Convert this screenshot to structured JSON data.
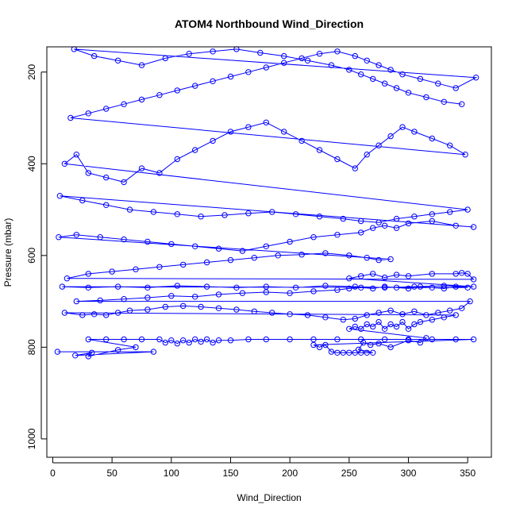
{
  "chart_data": {
    "type": "line",
    "title": "ATOM4 Northbound Wind_Direction",
    "xlabel": "Wind_Direction",
    "ylabel": "Pressure (mbar)",
    "xlim": [
      -5,
      370
    ],
    "ylim": [
      1040,
      145
    ],
    "y_reversed": true,
    "x_ticks": [
      0,
      50,
      100,
      150,
      200,
      250,
      300,
      350
    ],
    "y_ticks": [
      200,
      400,
      600,
      800,
      1000
    ],
    "x_tick_labels": [
      "0",
      "50",
      "100",
      "150",
      "200",
      "250",
      "300",
      "350"
    ],
    "y_tick_labels": [
      "200",
      "400",
      "600",
      "800",
      "1000"
    ],
    "grid": false,
    "legend": "none",
    "colors": {
      "series": "#0000ff",
      "axis": "#000000",
      "background": "#ffffff"
    },
    "series": [
      {
        "marker": "open-circle",
        "points": [
          [
            4,
            810
          ],
          [
            85,
            810
          ],
          [
            19,
            818
          ],
          [
            33,
            812
          ],
          [
            30,
            820
          ],
          [
            55,
            806
          ],
          [
            70,
            800
          ],
          [
            30,
            783
          ],
          [
            45,
            783
          ],
          [
            60,
            783
          ],
          [
            75,
            783
          ],
          [
            90,
            783
          ],
          [
            95,
            790
          ],
          [
            100,
            785
          ],
          [
            105,
            792
          ],
          [
            110,
            785
          ],
          [
            115,
            790
          ],
          [
            120,
            783
          ],
          [
            125,
            788
          ],
          [
            130,
            783
          ],
          [
            135,
            790
          ],
          [
            140,
            785
          ],
          [
            150,
            785
          ],
          [
            165,
            783
          ],
          [
            180,
            783
          ],
          [
            200,
            783
          ],
          [
            220,
            783
          ],
          [
            240,
            783
          ],
          [
            260,
            783
          ],
          [
            280,
            783
          ],
          [
            300,
            783
          ],
          [
            320,
            783
          ],
          [
            340,
            783
          ],
          [
            355,
            783
          ],
          [
            220,
            795
          ],
          [
            225,
            800
          ],
          [
            230,
            795
          ],
          [
            235,
            810
          ],
          [
            240,
            812
          ],
          [
            245,
            812
          ],
          [
            250,
            812
          ],
          [
            255,
            812
          ],
          [
            260,
            812
          ],
          [
            265,
            812
          ],
          [
            270,
            812
          ],
          [
            258,
            805
          ],
          [
            262,
            790
          ],
          [
            268,
            795
          ],
          [
            275,
            792
          ],
          [
            285,
            800
          ],
          [
            300,
            785
          ],
          [
            310,
            790
          ],
          [
            315,
            780
          ],
          [
            250,
            760
          ],
          [
            255,
            755
          ],
          [
            260,
            760
          ],
          [
            265,
            750
          ],
          [
            270,
            755
          ],
          [
            275,
            745
          ],
          [
            280,
            760
          ],
          [
            285,
            750
          ],
          [
            290,
            755
          ],
          [
            295,
            745
          ],
          [
            300,
            760
          ],
          [
            305,
            750
          ],
          [
            310,
            745
          ],
          [
            320,
            740
          ],
          [
            330,
            735
          ],
          [
            340,
            730
          ],
          [
            10,
            725
          ],
          [
            25,
            730
          ],
          [
            35,
            728
          ],
          [
            45,
            730
          ],
          [
            55,
            725
          ],
          [
            65,
            720
          ],
          [
            80,
            718
          ],
          [
            95,
            712
          ],
          [
            110,
            710
          ],
          [
            125,
            712
          ],
          [
            140,
            715
          ],
          [
            155,
            718
          ],
          [
            170,
            722
          ],
          [
            185,
            725
          ],
          [
            200,
            728
          ],
          [
            215,
            730
          ],
          [
            230,
            735
          ],
          [
            245,
            740
          ],
          [
            255,
            738
          ],
          [
            265,
            730
          ],
          [
            275,
            725
          ],
          [
            285,
            720
          ],
          [
            295,
            728
          ],
          [
            305,
            722
          ],
          [
            315,
            730
          ],
          [
            325,
            725
          ],
          [
            335,
            720
          ],
          [
            345,
            715
          ],
          [
            352,
            700
          ],
          [
            20,
            700
          ],
          [
            40,
            698
          ],
          [
            60,
            695
          ],
          [
            80,
            692
          ],
          [
            100,
            688
          ],
          [
            120,
            690
          ],
          [
            140,
            685
          ],
          [
            160,
            682
          ],
          [
            180,
            680
          ],
          [
            200,
            682
          ],
          [
            220,
            678
          ],
          [
            240,
            675
          ],
          [
            250,
            672
          ],
          [
            260,
            670
          ],
          [
            270,
            672
          ],
          [
            280,
            668
          ],
          [
            290,
            670
          ],
          [
            300,
            672
          ],
          [
            310,
            668
          ],
          [
            320,
            670
          ],
          [
            330,
            672
          ],
          [
            340,
            668
          ],
          [
            350,
            670
          ],
          [
            8,
            668
          ],
          [
            30,
            670
          ],
          [
            55,
            668
          ],
          [
            80,
            670
          ],
          [
            105,
            666
          ],
          [
            130,
            668
          ],
          [
            155,
            670
          ],
          [
            180,
            668
          ],
          [
            205,
            670
          ],
          [
            230,
            666
          ],
          [
            255,
            668
          ],
          [
            280,
            670
          ],
          [
            305,
            668
          ],
          [
            330,
            666
          ],
          [
            355,
            668
          ],
          [
            250,
            650
          ],
          [
            260,
            645
          ],
          [
            270,
            640
          ],
          [
            280,
            648
          ],
          [
            290,
            642
          ],
          [
            300,
            645
          ],
          [
            320,
            640
          ],
          [
            340,
            640
          ],
          [
            345,
            638
          ],
          [
            350,
            640
          ],
          [
            355,
            652
          ],
          [
            12,
            650
          ],
          [
            30,
            640
          ],
          [
            50,
            635
          ],
          [
            70,
            630
          ],
          [
            90,
            625
          ],
          [
            110,
            620
          ],
          [
            130,
            615
          ],
          [
            150,
            610
          ],
          [
            170,
            605
          ],
          [
            190,
            600
          ],
          [
            210,
            598
          ],
          [
            230,
            595
          ],
          [
            250,
            600
          ],
          [
            265,
            605
          ],
          [
            275,
            610
          ],
          [
            285,
            608
          ],
          [
            5,
            560
          ],
          [
            20,
            555
          ],
          [
            40,
            560
          ],
          [
            60,
            565
          ],
          [
            80,
            570
          ],
          [
            100,
            575
          ],
          [
            120,
            580
          ],
          [
            140,
            585
          ],
          [
            160,
            590
          ],
          [
            180,
            580
          ],
          [
            200,
            570
          ],
          [
            220,
            560
          ],
          [
            240,
            555
          ],
          [
            260,
            550
          ],
          [
            270,
            540
          ],
          [
            280,
            535
          ],
          [
            290,
            540
          ],
          [
            300,
            530
          ],
          [
            320,
            525
          ],
          [
            340,
            535
          ],
          [
            355,
            538
          ],
          [
            6,
            470
          ],
          [
            25,
            480
          ],
          [
            45,
            490
          ],
          [
            65,
            500
          ],
          [
            85,
            505
          ],
          [
            105,
            510
          ],
          [
            125,
            515
          ],
          [
            145,
            512
          ],
          [
            165,
            508
          ],
          [
            185,
            505
          ],
          [
            205,
            510
          ],
          [
            225,
            515
          ],
          [
            245,
            520
          ],
          [
            260,
            525
          ],
          [
            275,
            528
          ],
          [
            290,
            520
          ],
          [
            305,
            515
          ],
          [
            320,
            510
          ],
          [
            335,
            505
          ],
          [
            350,
            500
          ],
          [
            10,
            400
          ],
          [
            20,
            380
          ],
          [
            30,
            420
          ],
          [
            45,
            430
          ],
          [
            60,
            440
          ],
          [
            75,
            410
          ],
          [
            90,
            420
          ],
          [
            105,
            390
          ],
          [
            120,
            370
          ],
          [
            135,
            350
          ],
          [
            150,
            330
          ],
          [
            165,
            320
          ],
          [
            180,
            310
          ],
          [
            195,
            330
          ],
          [
            210,
            350
          ],
          [
            225,
            370
          ],
          [
            240,
            390
          ],
          [
            255,
            410
          ],
          [
            265,
            380
          ],
          [
            275,
            360
          ],
          [
            285,
            340
          ],
          [
            295,
            320
          ],
          [
            305,
            330
          ],
          [
            320,
            345
          ],
          [
            335,
            360
          ],
          [
            348,
            380
          ],
          [
            15,
            300
          ],
          [
            30,
            290
          ],
          [
            45,
            280
          ],
          [
            60,
            270
          ],
          [
            75,
            260
          ],
          [
            90,
            250
          ],
          [
            105,
            240
          ],
          [
            120,
            230
          ],
          [
            135,
            220
          ],
          [
            150,
            210
          ],
          [
            165,
            200
          ],
          [
            180,
            190
          ],
          [
            195,
            180
          ],
          [
            210,
            170
          ],
          [
            225,
            160
          ],
          [
            240,
            155
          ],
          [
            255,
            165
          ],
          [
            265,
            175
          ],
          [
            275,
            185
          ],
          [
            285,
            195
          ],
          [
            295,
            205
          ],
          [
            310,
            215
          ],
          [
            325,
            225
          ],
          [
            340,
            235
          ],
          [
            357,
            212
          ],
          [
            18,
            150
          ],
          [
            35,
            165
          ],
          [
            55,
            175
          ],
          [
            75,
            185
          ],
          [
            95,
            170
          ],
          [
            115,
            160
          ],
          [
            135,
            155
          ],
          [
            155,
            150
          ],
          [
            175,
            158
          ],
          [
            195,
            165
          ],
          [
            215,
            175
          ],
          [
            235,
            185
          ],
          [
            250,
            195
          ],
          [
            260,
            205
          ],
          [
            270,
            215
          ],
          [
            280,
            225
          ],
          [
            290,
            235
          ],
          [
            300,
            245
          ],
          [
            315,
            255
          ],
          [
            330,
            265
          ],
          [
            345,
            270
          ]
        ]
      }
    ]
  }
}
